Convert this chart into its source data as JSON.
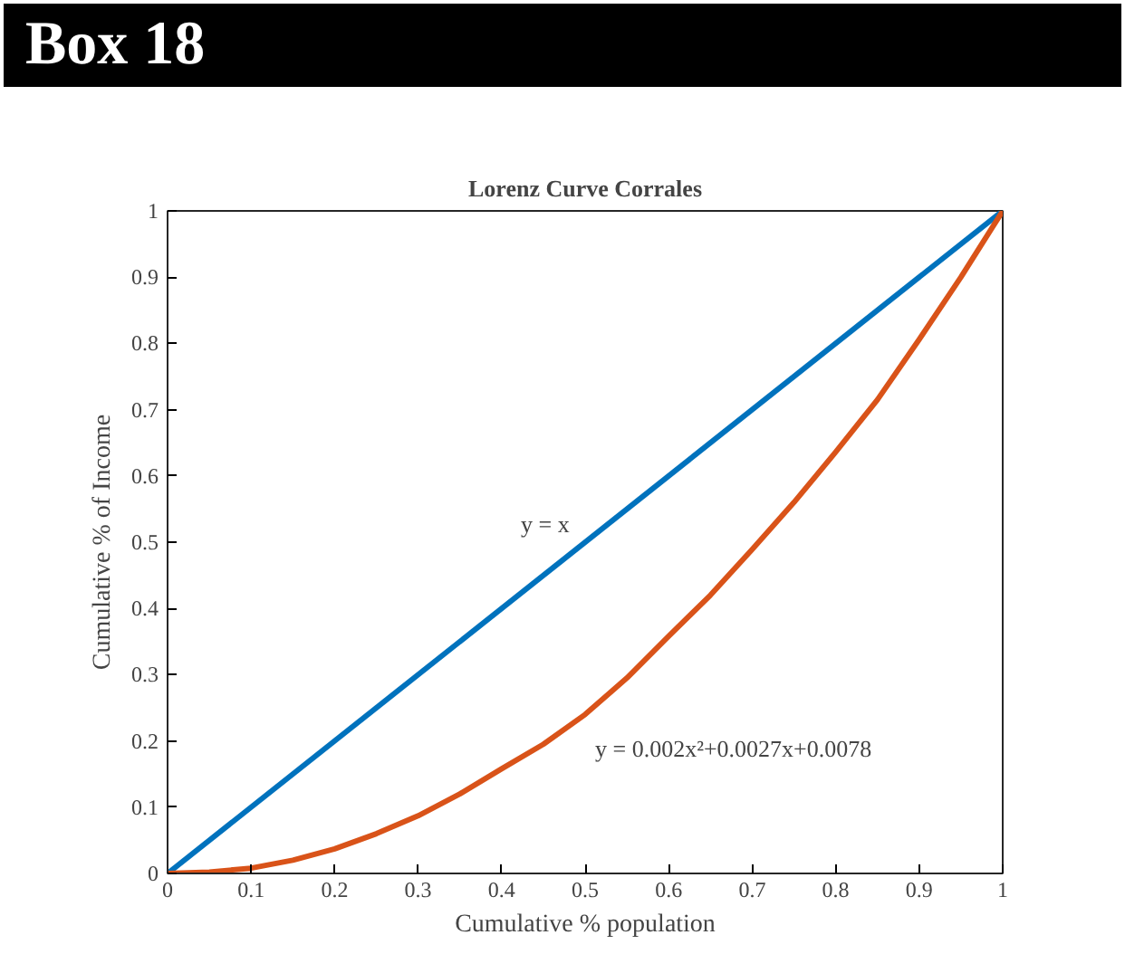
{
  "chart_data": {
    "type": "line",
    "title": "Box 18",
    "subtitle": "Lorenz Curve Corrales",
    "xlabel": "Cumulative % population",
    "ylabel": "Cumulative % of Income",
    "xlim": [
      0,
      1
    ],
    "ylim": [
      0,
      1
    ],
    "xticks": [
      0,
      0.1,
      0.2,
      0.3,
      0.4,
      0.5,
      0.6,
      0.7,
      0.8,
      0.9,
      1
    ],
    "yticks": [
      0,
      0.1,
      0.2,
      0.3,
      0.4,
      0.5,
      0.6,
      0.7,
      0.8,
      0.9,
      1
    ],
    "grid": false,
    "marker": "none",
    "line_style": "solid",
    "series": [
      {
        "color": "#0072bd",
        "x": [
          0,
          1
        ],
        "values": [
          0,
          1
        ]
      },
      {
        "color": "#d95319",
        "x": [
          0,
          0.05,
          0.1,
          0.15,
          0.2,
          0.25,
          0.3,
          0.35,
          0.4,
          0.45,
          0.5,
          0.55,
          0.6,
          0.65,
          0.7,
          0.75,
          0.8,
          0.85,
          0.9,
          0.95,
          1
        ],
        "values": [
          0,
          0.002,
          0.008,
          0.02,
          0.037,
          0.06,
          0.087,
          0.12,
          0.158,
          0.195,
          0.24,
          0.295,
          0.358,
          0.42,
          0.489,
          0.56,
          0.636,
          0.715,
          0.806,
          0.9,
          1
        ]
      }
    ],
    "annotations": [
      "y = x",
      "y = 0.002x²+0.0027x+0.0078"
    ]
  }
}
